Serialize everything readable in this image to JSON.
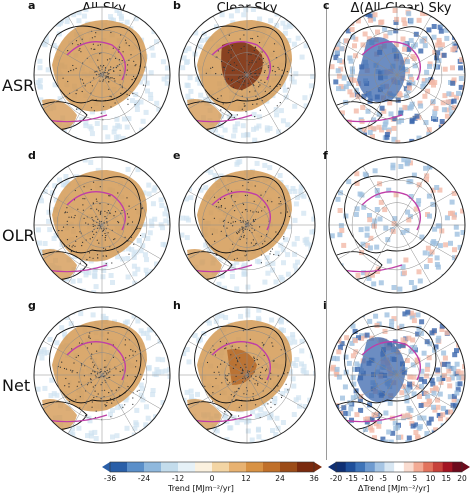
{
  "columns": [
    "All-Sky",
    "Clear-Sky",
    "Δ(All-Clear) Sky"
  ],
  "rows": [
    "ASR",
    "OLR",
    "Net"
  ],
  "panels": [
    "a",
    "b",
    "c",
    "d",
    "e",
    "f",
    "g",
    "h",
    "i"
  ],
  "colorbar_left": {
    "label": "Trend [MJm⁻²/yr]",
    "ticks": [
      "-36",
      "-24",
      "-12",
      "0",
      "12",
      "24",
      "36"
    ],
    "colors": [
      "#2a5fa8",
      "#5b8fc9",
      "#8fb8dd",
      "#c3dcec",
      "#e6f1f7",
      "#fbf1df",
      "#f3d5a4",
      "#e8b271",
      "#d89244",
      "#c0702a",
      "#9c4c18",
      "#7a2a0e"
    ]
  },
  "colorbar_right": {
    "label": "ΔTrend [MJm⁻²/yr]",
    "ticks": [
      "-20",
      "-15",
      "-10",
      "-5",
      "0",
      "5",
      "10",
      "15",
      "20"
    ],
    "colors": [
      "#0f2f73",
      "#1f4f9a",
      "#3f74b8",
      "#6f9bd0",
      "#a6c5e4",
      "#d8e7f3",
      "#ffffff",
      "#fadcd0",
      "#f3aa94",
      "#e2735d",
      "#c7413a",
      "#a31422",
      "#6d0a1c"
    ]
  },
  "colors": {
    "orange": "#d49a55",
    "orange_dark": "#b56a2a",
    "brown": "#7a2f14",
    "light_blue": "#cfe3f1",
    "blue": "#3b67ad",
    "red_light": "#f3b9a8",
    "magenta": "#c03ca8",
    "coast": "#111111"
  }
}
